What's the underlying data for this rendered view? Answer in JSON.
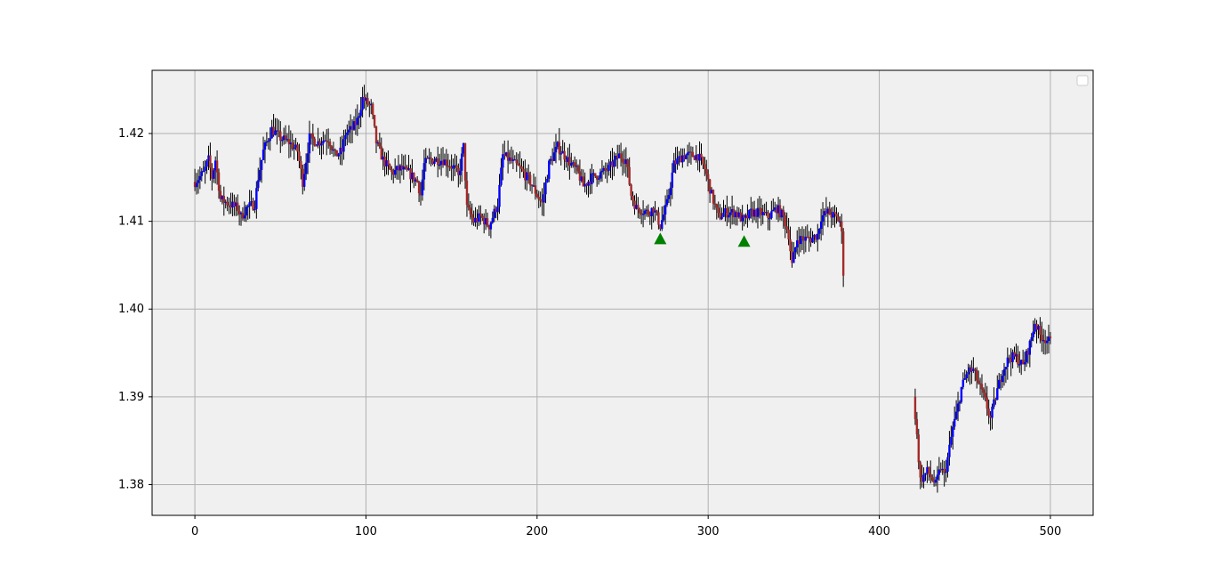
{
  "chart_data": {
    "type": "candlestick",
    "title": "",
    "xlabel": "",
    "ylabel": "",
    "xlim": [
      -25,
      525
    ],
    "ylim": [
      1.3765,
      1.4272
    ],
    "x_ticks": [
      0,
      100,
      200,
      300,
      400,
      500
    ],
    "x_tick_labels": [
      "0",
      "100",
      "200",
      "300",
      "400",
      "500"
    ],
    "y_ticks": [
      1.38,
      1.39,
      1.4,
      1.41,
      1.42
    ],
    "y_tick_labels": [
      "1.38",
      "1.39",
      "1.40",
      "1.41",
      "1.42"
    ],
    "grid": true,
    "legend": {
      "location": "upper right",
      "entries": []
    },
    "colors": {
      "background": "#f0f0f0",
      "grid": "#b0b0b0",
      "up": "#0000ff",
      "down": "#a52a2a",
      "wick": "#000000",
      "marker": "#008000"
    },
    "path": [
      [
        0,
        1.4145
      ],
      [
        5,
        1.4155
      ],
      [
        8,
        1.417
      ],
      [
        10,
        1.415
      ],
      [
        12,
        1.417
      ],
      [
        15,
        1.4125
      ],
      [
        20,
        1.412
      ],
      [
        25,
        1.4115
      ],
      [
        27,
        1.4105
      ],
      [
        30,
        1.4115
      ],
      [
        35,
        1.412
      ],
      [
        37,
        1.415
      ],
      [
        40,
        1.418
      ],
      [
        45,
        1.4205
      ],
      [
        50,
        1.4195
      ],
      [
        55,
        1.419
      ],
      [
        60,
        1.418
      ],
      [
        63,
        1.4145
      ],
      [
        67,
        1.4195
      ],
      [
        72,
        1.419
      ],
      [
        78,
        1.4195
      ],
      [
        82,
        1.4175
      ],
      [
        86,
        1.418
      ],
      [
        88,
        1.42
      ],
      [
        92,
        1.4205
      ],
      [
        95,
        1.4215
      ],
      [
        98,
        1.424
      ],
      [
        103,
        1.423
      ],
      [
        106,
        1.419
      ],
      [
        110,
        1.417
      ],
      [
        115,
        1.4155
      ],
      [
        120,
        1.416
      ],
      [
        125,
        1.4155
      ],
      [
        130,
        1.4145
      ],
      [
        132,
        1.413
      ],
      [
        134,
        1.4165
      ],
      [
        137,
        1.417
      ],
      [
        145,
        1.417
      ],
      [
        152,
        1.416
      ],
      [
        154,
        1.415
      ],
      [
        157,
        1.4185
      ],
      [
        159,
        1.4115
      ],
      [
        163,
        1.41
      ],
      [
        167,
        1.4105
      ],
      [
        172,
        1.4095
      ],
      [
        177,
        1.412
      ],
      [
        180,
        1.4175
      ],
      [
        184,
        1.417
      ],
      [
        190,
        1.416
      ],
      [
        196,
        1.4145
      ],
      [
        200,
        1.413
      ],
      [
        203,
        1.412
      ],
      [
        207,
        1.4165
      ],
      [
        212,
        1.4185
      ],
      [
        218,
        1.417
      ],
      [
        224,
        1.4155
      ],
      [
        227,
        1.414
      ],
      [
        232,
        1.415
      ],
      [
        238,
        1.4155
      ],
      [
        242,
        1.416
      ],
      [
        248,
        1.4175
      ],
      [
        252,
        1.417
      ],
      [
        255,
        1.413
      ],
      [
        258,
        1.4115
      ],
      [
        265,
        1.411
      ],
      [
        268,
        1.4115
      ],
      [
        272,
        1.4095
      ],
      [
        276,
        1.412
      ],
      [
        280,
        1.4165
      ],
      [
        285,
        1.4175
      ],
      [
        290,
        1.4175
      ],
      [
        294,
        1.4175
      ],
      [
        298,
        1.416
      ],
      [
        302,
        1.413
      ],
      [
        306,
        1.4105
      ],
      [
        310,
        1.411
      ],
      [
        316,
        1.411
      ],
      [
        321,
        1.41
      ],
      [
        325,
        1.411
      ],
      [
        330,
        1.411
      ],
      [
        335,
        1.4105
      ],
      [
        340,
        1.4115
      ],
      [
        344,
        1.4105
      ],
      [
        347,
        1.4085
      ],
      [
        349,
        1.405
      ],
      [
        352,
        1.408
      ],
      [
        360,
        1.408
      ],
      [
        364,
        1.4085
      ],
      [
        366,
        1.4105
      ],
      [
        370,
        1.411
      ],
      [
        374,
        1.4105
      ],
      [
        377,
        1.41
      ],
      [
        378,
        1.4085
      ],
      [
        380,
        1.4
      ],
      [
        385,
        1.3985
      ],
      [
        390,
        1.3995
      ],
      [
        394,
        1.396
      ],
      [
        397,
        1.3935
      ],
      [
        400,
        1.391
      ],
      [
        405,
        1.3925
      ],
      [
        410,
        1.394
      ],
      [
        413,
        1.392
      ],
      [
        417,
        1.387
      ],
      [
        420,
        1.39
      ],
      [
        422,
        1.3855
      ],
      [
        424,
        1.3805
      ],
      [
        428,
        1.3815
      ],
      [
        433,
        1.38
      ],
      [
        436,
        1.382
      ],
      [
        438,
        1.381
      ],
      [
        440,
        1.383
      ],
      [
        443,
        1.3865
      ],
      [
        445,
        1.388
      ],
      [
        448,
        1.391
      ],
      [
        452,
        1.393
      ],
      [
        455,
        1.393
      ],
      [
        458,
        1.3915
      ],
      [
        462,
        1.3895
      ],
      [
        465,
        1.3875
      ],
      [
        468,
        1.39
      ],
      [
        472,
        1.393
      ],
      [
        476,
        1.3945
      ],
      [
        480,
        1.3945
      ],
      [
        484,
        1.3935
      ],
      [
        488,
        1.396
      ],
      [
        491,
        1.3985
      ],
      [
        494,
        1.397
      ],
      [
        500,
        1.3962
      ]
    ],
    "gaps": [
      [
        379,
        421
      ]
    ],
    "markers": [
      {
        "shape": "triangle-up",
        "x": 272,
        "y": 1.408
      },
      {
        "shape": "triangle-up",
        "x": 321,
        "y": 1.4077
      }
    ]
  }
}
